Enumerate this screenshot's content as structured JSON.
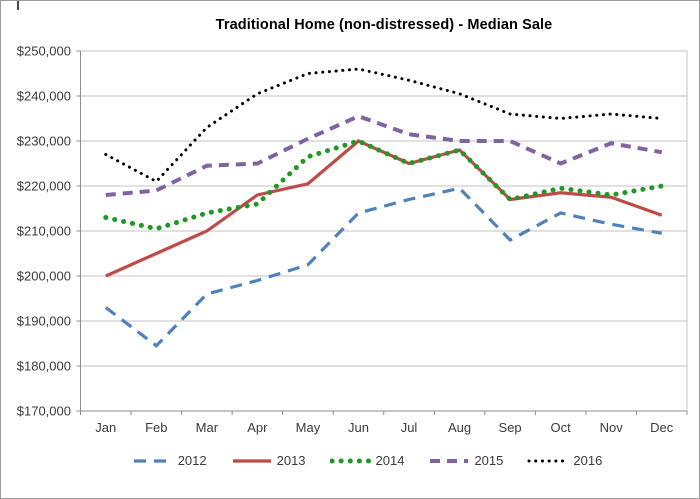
{
  "chart_data": {
    "type": "line",
    "title": "Traditional Home (non-distressed) - Median Sale",
    "categories": [
      "Jan",
      "Feb",
      "Mar",
      "Apr",
      "May",
      "Jun",
      "Jul",
      "Aug",
      "Sep",
      "Oct",
      "Nov",
      "Dec"
    ],
    "y_axis": {
      "min": 170000,
      "max": 250000,
      "step": 10000,
      "tick_labels": [
        "$170,000",
        "$180,000",
        "$190,000",
        "$200,000",
        "$210,000",
        "$220,000",
        "$230,000",
        "$240,000",
        "$250,000"
      ]
    },
    "grid": true,
    "legend_position": "bottom",
    "series": [
      {
        "name": "2012",
        "color": "#4f81bd",
        "style": "dashed",
        "values": [
          193000,
          184500,
          196000,
          199000,
          202500,
          214000,
          217000,
          219500,
          208000,
          214000,
          211500,
          209500
        ]
      },
      {
        "name": "2013",
        "color": "#be4b48",
        "style": "solid",
        "values": [
          200000,
          205000,
          210000,
          218000,
          220500,
          230000,
          225000,
          228000,
          217000,
          218500,
          217500,
          213500
        ]
      },
      {
        "name": "2014",
        "color": "#1f9924",
        "style": "dotted-large",
        "values": [
          213000,
          210500,
          214000,
          216000,
          226500,
          230000,
          225000,
          228000,
          217000,
          219500,
          218000,
          220000
        ]
      },
      {
        "name": "2015",
        "color": "#8064a2",
        "style": "dashed-thick",
        "values": [
          218000,
          219000,
          224500,
          225000,
          230500,
          235500,
          231500,
          230000,
          230000,
          225000,
          229500,
          227500
        ]
      },
      {
        "name": "2016",
        "color": "#000000",
        "style": "dotted-small",
        "values": [
          227000,
          221000,
          233000,
          240500,
          245000,
          246000,
          243500,
          240500,
          236000,
          235000,
          236000,
          235000
        ]
      }
    ]
  }
}
